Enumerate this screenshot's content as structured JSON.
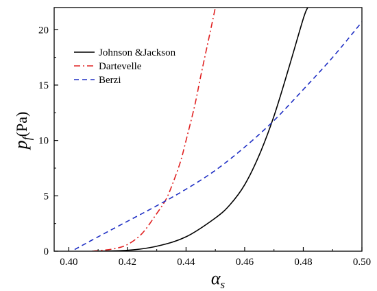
{
  "chart_data": {
    "type": "line",
    "xlabel": "α",
    "xlabel_sub": "s",
    "ylabel": "p",
    "ylabel_sub": "f",
    "ylabel_unit": "(Pa)",
    "xlim": [
      0.395,
      0.5
    ],
    "ylim": [
      0,
      22
    ],
    "x_ticks": [
      0.4,
      0.42,
      0.44,
      0.46,
      0.48,
      0.5
    ],
    "x_tick_labels": [
      "0.40",
      "0.42",
      "0.44",
      "0.46",
      "0.48",
      "0.50"
    ],
    "y_ticks": [
      0,
      5,
      10,
      15,
      20
    ],
    "y_tick_labels": [
      "0",
      "5",
      "10",
      "15",
      "20"
    ],
    "grid": false,
    "legend_position": "top-left",
    "series": [
      {
        "name": "Johnson &Jackson",
        "color": "#000000",
        "dash": "solid",
        "x": [
          0.408,
          0.42,
          0.43,
          0.44,
          0.45,
          0.455,
          0.46,
          0.465,
          0.47,
          0.475,
          0.48,
          0.4815
        ],
        "y": [
          0.0,
          0.08,
          0.45,
          1.3,
          3.0,
          4.2,
          6.0,
          8.7,
          12.2,
          16.5,
          21.0,
          22.0
        ]
      },
      {
        "name": "Dartevelle",
        "color": "#e02020",
        "dash": "dashdot",
        "x": [
          0.408,
          0.415,
          0.42,
          0.425,
          0.43,
          0.433,
          0.435,
          0.438,
          0.44,
          0.443,
          0.445,
          0.448,
          0.45
        ],
        "y": [
          0.0,
          0.2,
          0.6,
          1.6,
          3.4,
          4.6,
          5.8,
          8.0,
          10.0,
          13.2,
          15.8,
          19.5,
          22.0
        ]
      },
      {
        "name": "Berzi",
        "color": "#1f2fc4",
        "dash": "dashed",
        "x": [
          0.402,
          0.41,
          0.42,
          0.43,
          0.44,
          0.45,
          0.46,
          0.47,
          0.48,
          0.49,
          0.5
        ],
        "y": [
          0.15,
          1.3,
          2.7,
          4.1,
          5.6,
          7.3,
          9.4,
          11.8,
          14.6,
          17.5,
          20.7
        ]
      }
    ]
  }
}
